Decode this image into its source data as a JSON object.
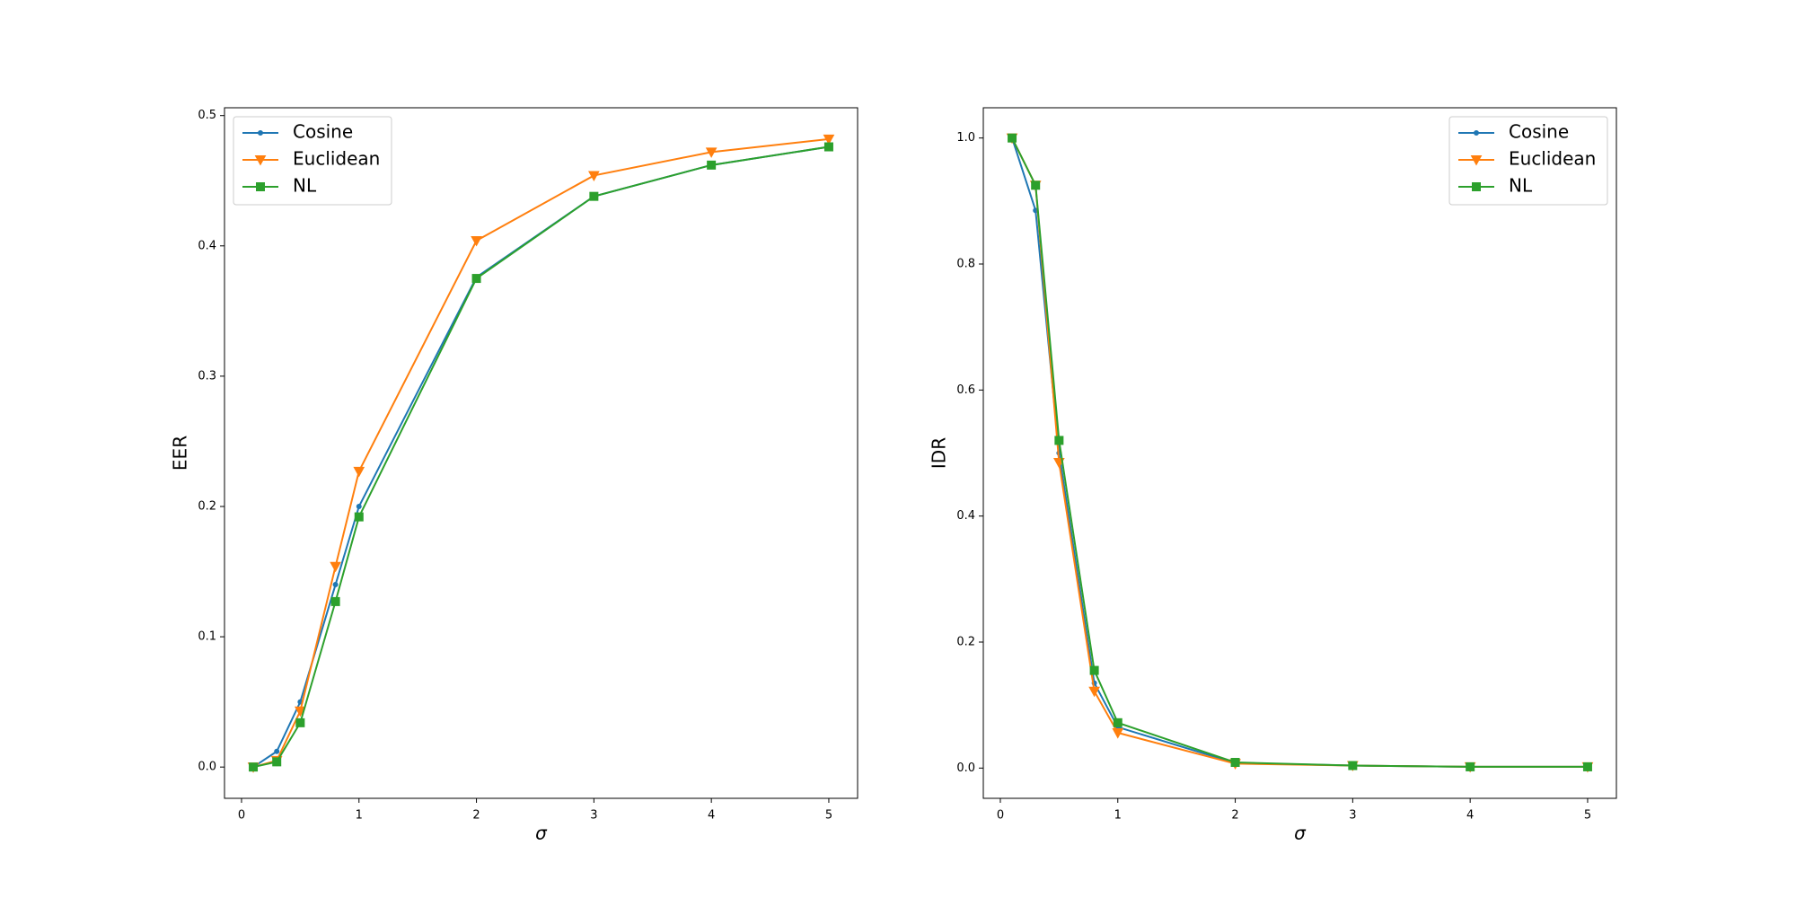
{
  "chart_data": [
    {
      "type": "line",
      "y_label": "EER",
      "x_label": "σ",
      "legend": "upper left",
      "x": [
        0.1,
        0.3,
        0.5,
        0.8,
        1,
        2,
        3,
        4,
        5
      ],
      "xlim": [
        -0.145,
        5.245
      ],
      "xticks": [
        0,
        1,
        2,
        3,
        4,
        5
      ],
      "ylim": [
        -0.024,
        0.506
      ],
      "yticks": [
        {
          "value": 0,
          "label": "0.0"
        },
        0.1,
        0.2,
        0.3,
        0.4,
        0.5
      ],
      "series": [
        {
          "name": "Cosine",
          "color": "#1f77b4",
          "marker": "point",
          "values": [
            0.0,
            0.012,
            0.05,
            0.14,
            0.2,
            0.376,
            0.438,
            0.462,
            0.476
          ]
        },
        {
          "name": "Euclidean",
          "color": "#ff7f0e",
          "marker": "triangle-down",
          "values": [
            0.0,
            0.005,
            0.043,
            0.154,
            0.227,
            0.404,
            0.454,
            0.472,
            0.482
          ]
        },
        {
          "name": "NL",
          "color": "#2ca02c",
          "marker": "square",
          "values": [
            0.0,
            0.004,
            0.034,
            0.127,
            0.192,
            0.375,
            0.438,
            0.462,
            0.476
          ]
        }
      ]
    },
    {
      "type": "line",
      "y_label": "IDR",
      "x_label": "σ",
      "legend": "upper right",
      "x": [
        0.1,
        0.3,
        0.5,
        0.8,
        1,
        2,
        3,
        4,
        5
      ],
      "xlim": [
        -0.145,
        5.245
      ],
      "xticks": [
        0,
        1,
        2,
        3,
        4,
        5
      ],
      "ylim": [
        -0.048,
        1.048
      ],
      "yticks": [
        {
          "value": 0,
          "label": "0.0"
        },
        0.2,
        0.4,
        0.6,
        0.8,
        {
          "value": 1,
          "label": "1.0"
        }
      ],
      "series": [
        {
          "name": "Cosine",
          "color": "#1f77b4",
          "marker": "point",
          "values": [
            1.0,
            0.885,
            0.5,
            0.135,
            0.065,
            0.008,
            0.004,
            0.002,
            0.002
          ]
        },
        {
          "name": "Euclidean",
          "color": "#ff7f0e",
          "marker": "triangle-down",
          "values": [
            1.0,
            0.925,
            0.485,
            0.122,
            0.056,
            0.007,
            0.004,
            0.002,
            0.002
          ]
        },
        {
          "name": "NL",
          "color": "#2ca02c",
          "marker": "square",
          "values": [
            1.0,
            0.925,
            0.52,
            0.155,
            0.072,
            0.009,
            0.004,
            0.002,
            0.002
          ]
        }
      ]
    }
  ]
}
